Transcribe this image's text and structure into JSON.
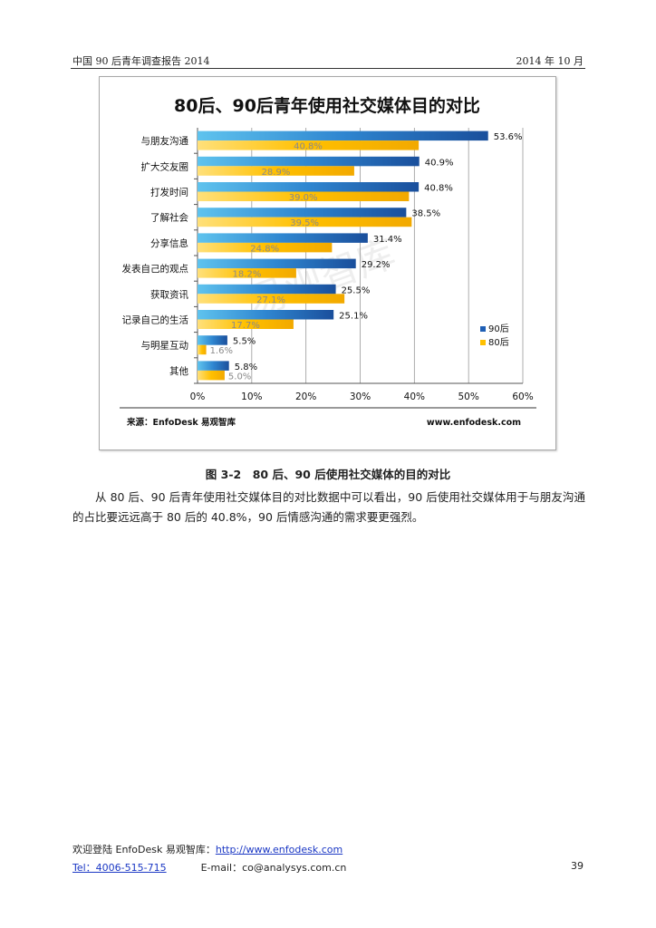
{
  "header": {
    "left": "中国 90 后青年调查报告 2014",
    "right": "2014 年 10 月"
  },
  "figure": {
    "source": "来源：EnfoDesk 易观智库",
    "site": "www.enfodesk.com",
    "watermark": "易观智库"
  },
  "colors": {
    "series_90": "#1f5fb5",
    "series_80": "#ffc000"
  },
  "chart_data": {
    "type": "bar",
    "orientation": "horizontal",
    "title": "80后、90后青年使用社交媒体目的对比",
    "categories": [
      "与朋友沟通",
      "扩大交友圈",
      "打发时间",
      "了解社会",
      "分享信息",
      "发表自己的观点",
      "获取资讯",
      "记录自己的生活",
      "与明星互动",
      "其他"
    ],
    "series": [
      {
        "name": "90后",
        "values": [
          53.6,
          40.9,
          40.8,
          38.5,
          31.4,
          29.2,
          25.5,
          25.1,
          5.5,
          5.8
        ],
        "labels": [
          "53.6%",
          "40.9%",
          "40.8%",
          "38.5%",
          "31.4%",
          "29.2%",
          "25.5%",
          "25.1%",
          "5.5%",
          "5.8%"
        ]
      },
      {
        "name": "80后",
        "values": [
          40.8,
          28.9,
          39.0,
          39.5,
          24.8,
          18.2,
          27.1,
          17.7,
          1.6,
          5.0
        ],
        "labels": [
          "40.8%",
          "28.9%",
          "39.0%",
          "39.5%",
          "24.8%",
          "18.2%",
          "27.1%",
          "17.7%",
          "1.6%",
          "5.0%"
        ]
      }
    ],
    "xlim": [
      0,
      60
    ],
    "xticks": [
      "0%",
      "10%",
      "20%",
      "30%",
      "40%",
      "50%",
      "60%"
    ],
    "grid": true,
    "legend": "right"
  },
  "caption": "图 3-2　80 后、90 后使用社交媒体的目的对比",
  "paragraph": "从 80 后、90 后青年使用社交媒体目的对比数据中可以看出，90 后使用社交媒体用于与朋友沟通的占比要远远高于 80 后的 40.8%，90 后情感沟通的需求要更强烈。",
  "footer": {
    "welcome": "欢迎登陆 EnfoDesk 易观智库：",
    "url": "http://www.enfodesk.com",
    "tel": "Tel：4006-515-715",
    "email": "E-mail：co@analysys.com.cn",
    "page": "39"
  }
}
